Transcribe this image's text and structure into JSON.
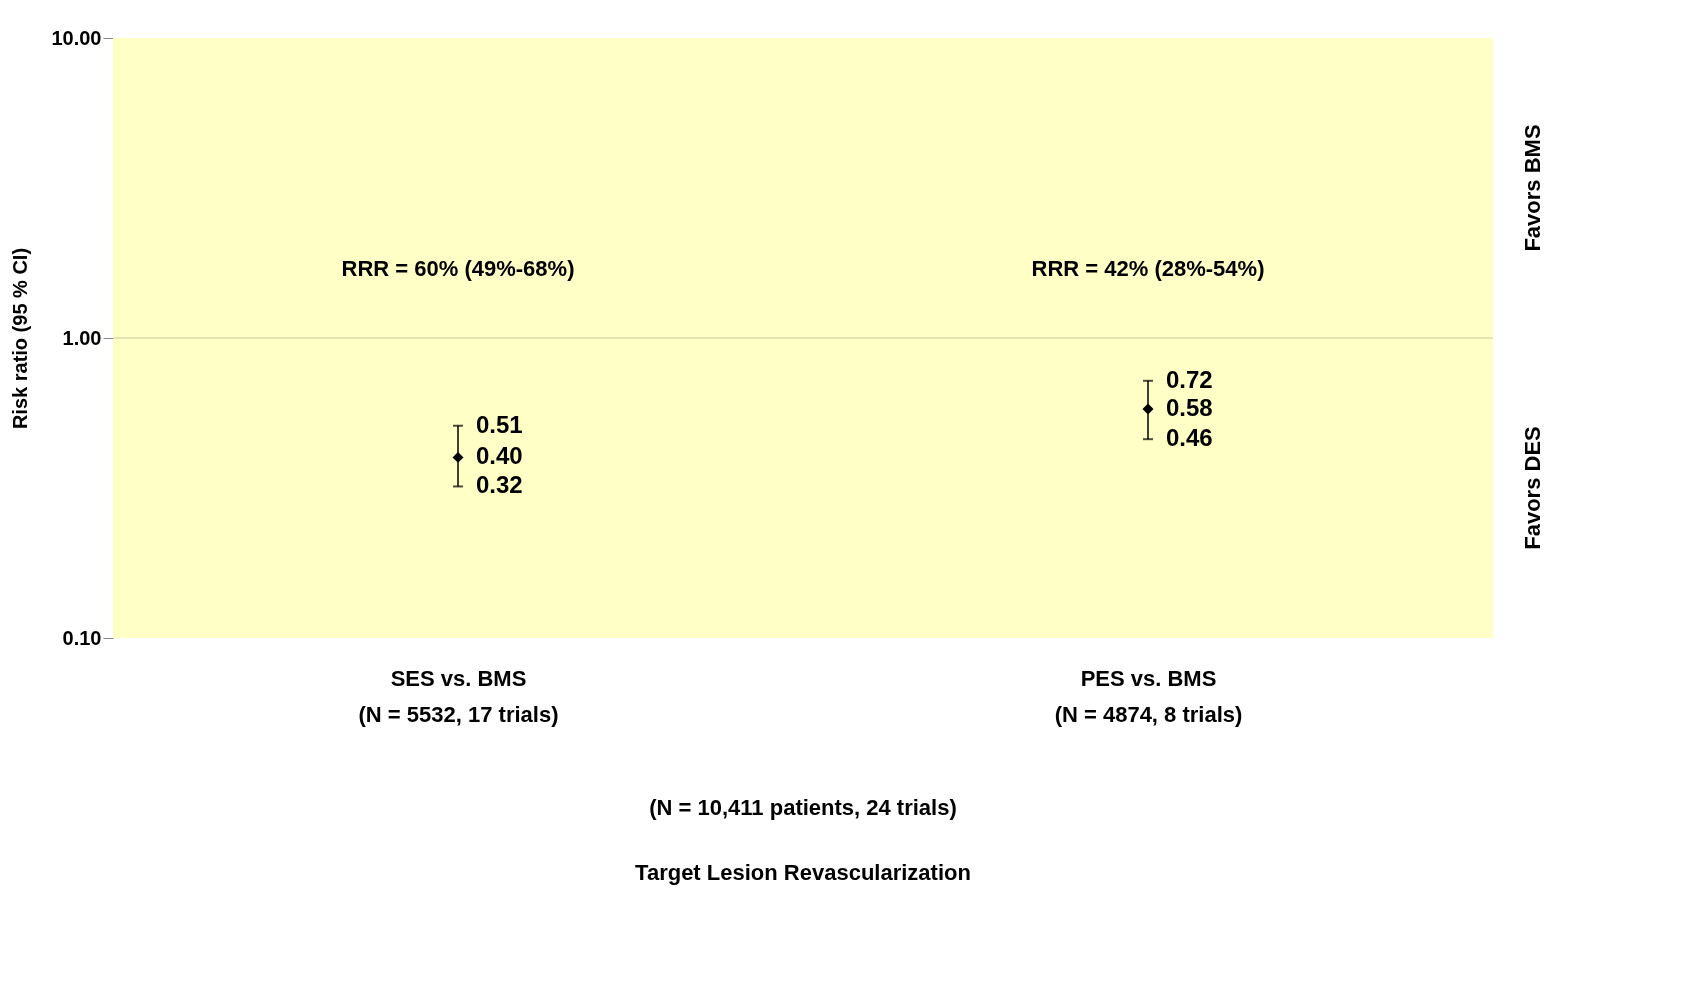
{
  "chart_data": {
    "type": "scatter",
    "categories": [
      "SES vs. BMS\n(N = 5532, 17 trials)",
      "PES vs. BMS\n(N = 4874, 8 trials)"
    ],
    "values": [
      0.4,
      0.58
    ],
    "value_labels": [
      "0.40",
      "0.58"
    ],
    "errors": [
      [
        0.32,
        0.51
      ],
      [
        0.46,
        0.72
      ]
    ],
    "color": "#000000",
    "marker": "diamond",
    "ylabel": "Risk ratio (95 % CI)",
    "log": "y",
    "ylim": [
      0.1,
      10
    ],
    "yticks": [
      {
        "value": 0.1,
        "label": "0.10"
      },
      {
        "value": 1,
        "label": "1.00"
      },
      {
        "value": 10,
        "label": "10.00"
      }
    ],
    "grid": false,
    "ref_lines": [
      {
        "axis": "y",
        "value": 1,
        "label": null,
        "color": "#c8c8a0"
      }
    ],
    "bands": [
      {
        "axis": "y",
        "from": 0.1,
        "to": 10,
        "label": null,
        "color": "#ffffc6"
      }
    ],
    "annotations": [
      "RRR = 60% (49%-68%)",
      "RRR = 42% (28%-54%)",
      "Favors  BMS",
      "Favors  DES",
      "(N = 10,411 patients, 24  trials)",
      "Target Lesion Revascularization",
      {
        "text": "0.51",
        "x": "SES vs. BMS\n(N = 5532, 17 trials)",
        "y": 0.51
      },
      {
        "text": "0.32",
        "x": "SES vs. BMS\n(N = 5532, 17 trials)",
        "y": 0.32
      },
      {
        "text": "0.72",
        "x": "PES vs. BMS\n(N = 4874, 8 trials)",
        "y": 0.72
      },
      {
        "text": "0.46",
        "x": "PES vs. BMS\n(N = 4874, 8 trials)",
        "y": 0.46
      }
    ]
  }
}
